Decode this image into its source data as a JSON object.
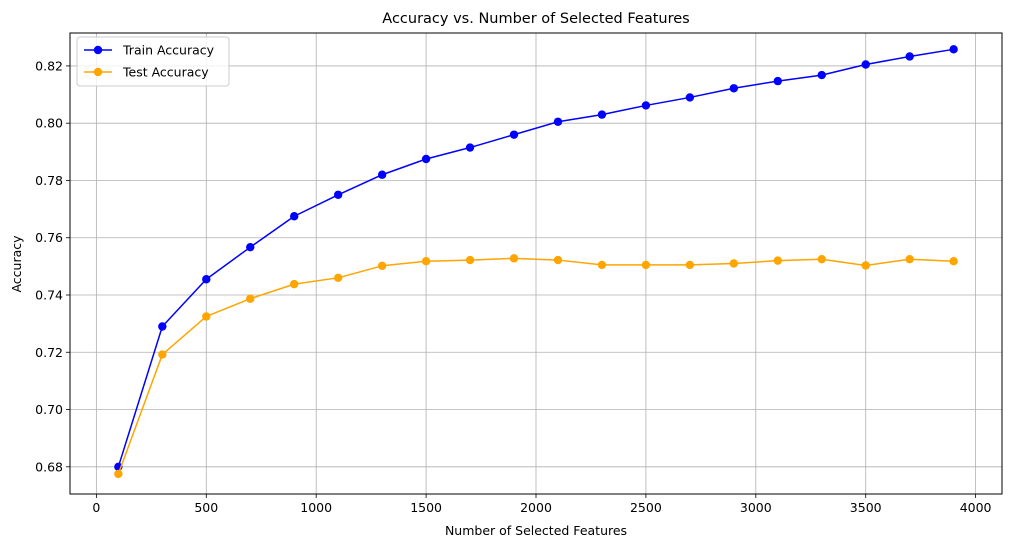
{
  "chart_data": {
    "type": "line",
    "title": "Accuracy vs. Number of Selected Features",
    "xlabel": "Number of Selected Features",
    "ylabel": "Accuracy",
    "xlim": [
      -120,
      4120
    ],
    "ylim": [
      0.6705,
      0.8315
    ],
    "xticks": [
      0,
      500,
      1000,
      1500,
      2000,
      2500,
      3000,
      3500,
      4000
    ],
    "xtick_labels": [
      "0",
      "500",
      "1000",
      "1500",
      "2000",
      "2500",
      "3000",
      "3500",
      "4000"
    ],
    "yticks": [
      0.68,
      0.7,
      0.72,
      0.74,
      0.76,
      0.78,
      0.8,
      0.82
    ],
    "ytick_labels": [
      "0.68",
      "0.70",
      "0.72",
      "0.74",
      "0.76",
      "0.78",
      "0.80",
      "0.82"
    ],
    "grid": true,
    "legend_position": "top-left",
    "x": [
      100,
      300,
      500,
      700,
      900,
      1100,
      1300,
      1500,
      1700,
      1900,
      2100,
      2300,
      2500,
      2700,
      2900,
      3100,
      3300,
      3500,
      3700,
      3900
    ],
    "series": [
      {
        "name": "Train Accuracy",
        "color": "#0000ff",
        "marker": "circle",
        "values": [
          0.68,
          0.729,
          0.7455,
          0.7567,
          0.7675,
          0.775,
          0.782,
          0.7875,
          0.7915,
          0.796,
          0.8005,
          0.803,
          0.8062,
          0.809,
          0.8122,
          0.8147,
          0.8168,
          0.8205,
          0.8233,
          0.8258
        ]
      },
      {
        "name": "Test Accuracy",
        "color": "#ffa500",
        "marker": "circle",
        "values": [
          0.6775,
          0.7192,
          0.7325,
          0.7387,
          0.7438,
          0.746,
          0.7502,
          0.7518,
          0.7522,
          0.7528,
          0.7522,
          0.7505,
          0.7505,
          0.7505,
          0.751,
          0.752,
          0.7525,
          0.7503,
          0.7525,
          0.7518
        ]
      }
    ]
  }
}
